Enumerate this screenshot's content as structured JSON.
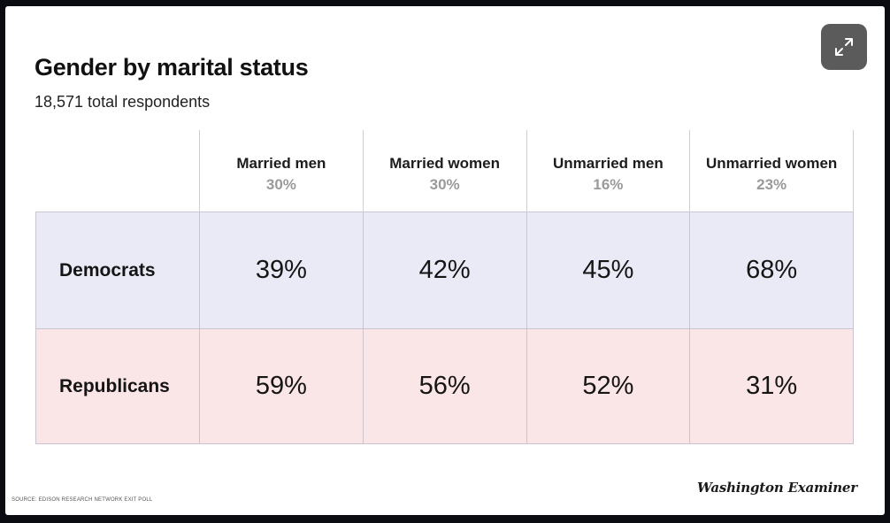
{
  "chart_data": {
    "type": "table",
    "title": "Gender by marital status",
    "subtitle": "18,571 total respondents",
    "columns": [
      {
        "label": "Married men",
        "share": "30%"
      },
      {
        "label": "Married women",
        "share": "30%"
      },
      {
        "label": "Unmarried men",
        "share": "16%"
      },
      {
        "label": "Unmarried women",
        "share": "23%"
      }
    ],
    "rows": [
      {
        "label": "Democrats",
        "values": [
          "39%",
          "42%",
          "45%",
          "68%"
        ]
      },
      {
        "label": "Republicans",
        "values": [
          "59%",
          "56%",
          "52%",
          "31%"
        ]
      }
    ],
    "row_colors": {
      "Democrats": "#e9eaf6",
      "Republicans": "#fbe6e7"
    }
  },
  "source": "SOURCE: EDISON RESEARCH NETWORK EXIT POLL",
  "branding": {
    "logo_text": "Washington Examiner"
  },
  "controls": {
    "expand_icon": "expand-icon"
  }
}
